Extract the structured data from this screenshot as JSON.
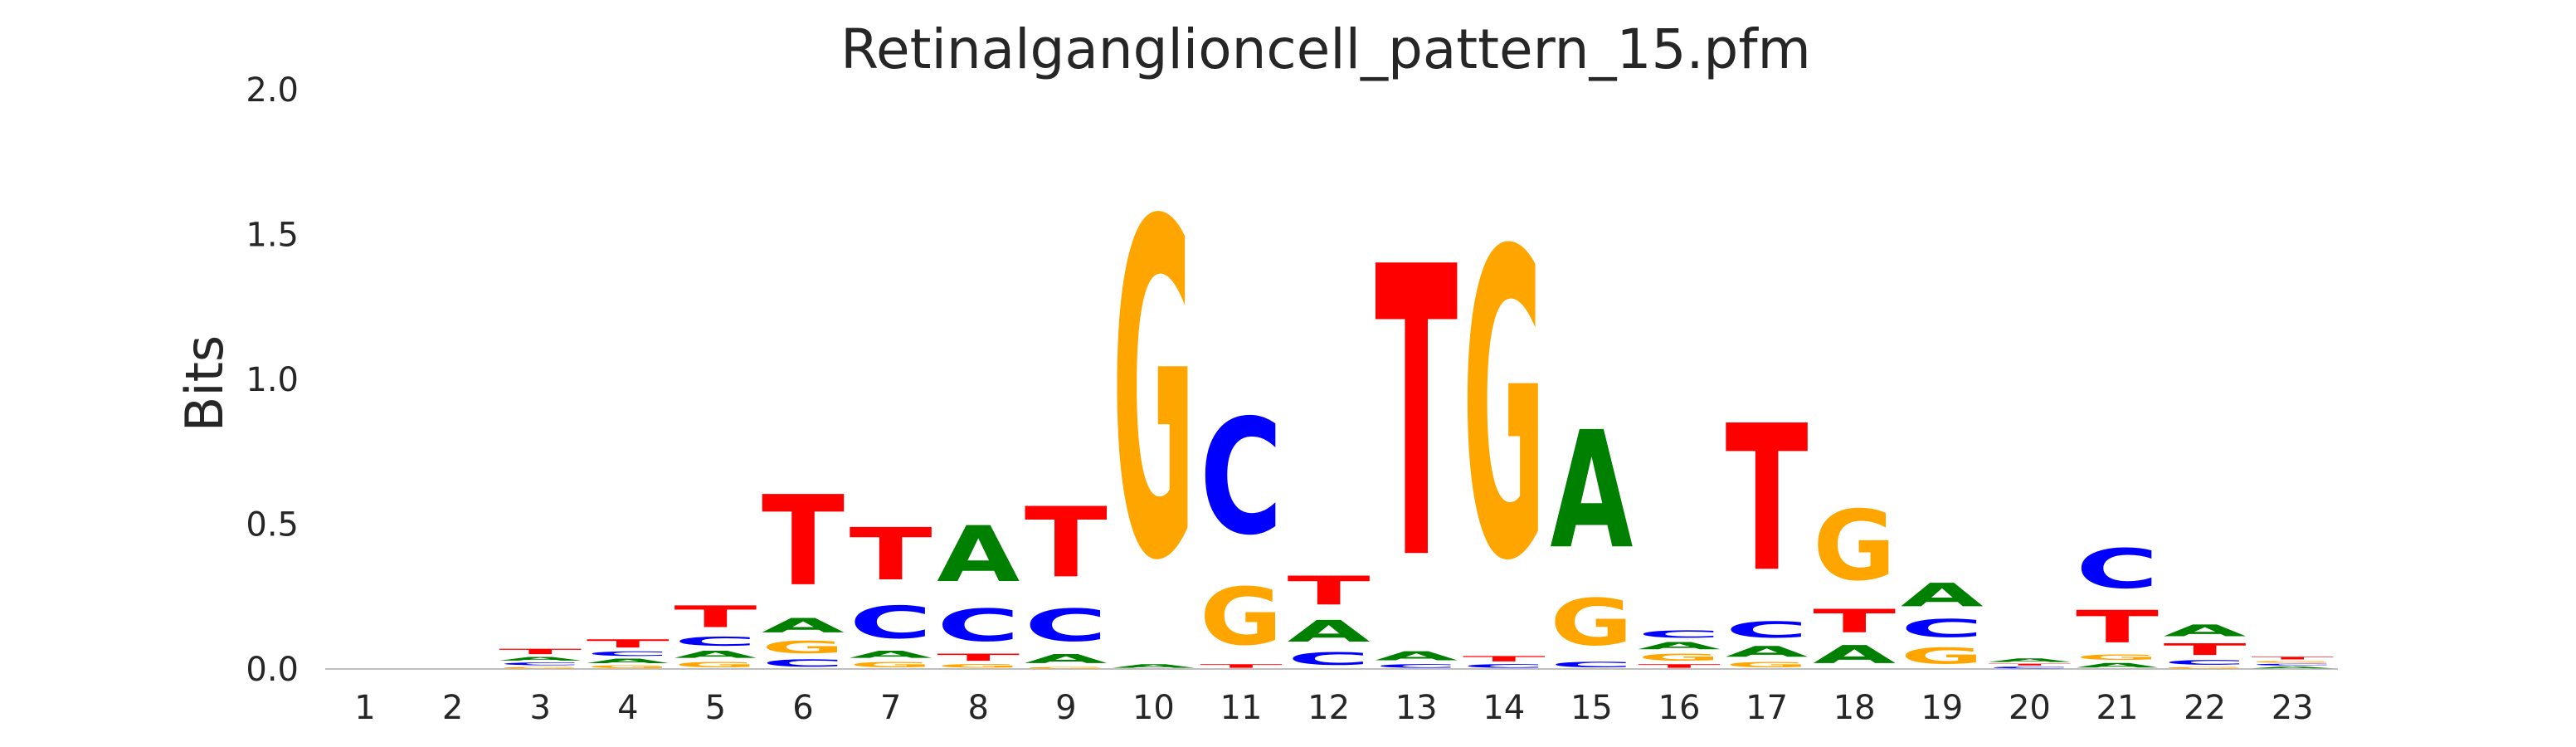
{
  "chart_data": {
    "type": "sequence-logo",
    "title": "Retinalganglioncell_pattern_15.pfm",
    "ylabel": "Bits",
    "xlabel": "",
    "ylim": [
      0,
      2.0
    ],
    "yticks": [
      "0.0",
      "0.5",
      "1.0",
      "1.5",
      "2.0"
    ],
    "colors": {
      "A": "#008000",
      "C": "#0000ff",
      "G": "#ffa500",
      "T": "#ff0000"
    },
    "positions": [
      {
        "label": "1",
        "stack": []
      },
      {
        "label": "2",
        "stack": []
      },
      {
        "label": "3",
        "stack": [
          {
            "b": "G",
            "h": 0.01
          },
          {
            "b": "C",
            "h": 0.015
          },
          {
            "b": "A",
            "h": 0.02
          },
          {
            "b": "T",
            "h": 0.03
          }
        ]
      },
      {
        "label": "4",
        "stack": [
          {
            "b": "G",
            "h": 0.015
          },
          {
            "b": "A",
            "h": 0.025
          },
          {
            "b": "C",
            "h": 0.025
          },
          {
            "b": "T",
            "h": 0.045
          }
        ]
      },
      {
        "label": "5",
        "stack": [
          {
            "b": "G",
            "h": 0.03
          },
          {
            "b": "A",
            "h": 0.04
          },
          {
            "b": "C",
            "h": 0.05
          },
          {
            "b": "T",
            "h": 0.12
          }
        ]
      },
      {
        "label": "6",
        "stack": [
          {
            "b": "C",
            "h": 0.04
          },
          {
            "b": "G",
            "h": 0.07
          },
          {
            "b": "A",
            "h": 0.08
          },
          {
            "b": "T",
            "h": 0.5
          }
        ]
      },
      {
        "label": "7",
        "stack": [
          {
            "b": "G",
            "h": 0.03
          },
          {
            "b": "A",
            "h": 0.04
          },
          {
            "b": "C",
            "h": 0.18
          },
          {
            "b": "T",
            "h": 0.29
          }
        ]
      },
      {
        "label": "8",
        "stack": [
          {
            "b": "G",
            "h": 0.02
          },
          {
            "b": "T",
            "h": 0.04
          },
          {
            "b": "C",
            "h": 0.18
          },
          {
            "b": "A",
            "h": 0.31
          }
        ]
      },
      {
        "label": "9",
        "stack": [
          {
            "b": "G",
            "h": 0.01
          },
          {
            "b": "A",
            "h": 0.05
          },
          {
            "b": "C",
            "h": 0.18
          },
          {
            "b": "T",
            "h": 0.39
          }
        ]
      },
      {
        "label": "10",
        "stack": [
          {
            "b": "A",
            "h": 0.02
          },
          {
            "b": "G",
            "h": 1.86
          }
        ]
      },
      {
        "label": "11",
        "stack": [
          {
            "b": "T",
            "h": 0.02
          },
          {
            "b": "G",
            "h": 0.32
          },
          {
            "b": "C",
            "h": 0.64
          }
        ]
      },
      {
        "label": "12",
        "stack": [
          {
            "b": "C",
            "h": 0.07
          },
          {
            "b": "A",
            "h": 0.12
          },
          {
            "b": "T",
            "h": 0.16
          }
        ]
      },
      {
        "label": "13",
        "stack": [
          {
            "b": "C",
            "h": 0.02
          },
          {
            "b": "A",
            "h": 0.05
          },
          {
            "b": "T",
            "h": 1.61
          }
        ]
      },
      {
        "label": "14",
        "stack": [
          {
            "b": "C",
            "h": 0.02
          },
          {
            "b": "T",
            "h": 0.03
          },
          {
            "b": "G",
            "h": 1.7
          }
        ]
      },
      {
        "label": "15",
        "stack": [
          {
            "b": "C",
            "h": 0.03
          },
          {
            "b": "G",
            "h": 0.26
          },
          {
            "b": "A",
            "h": 0.65
          }
        ]
      },
      {
        "label": "16",
        "stack": [
          {
            "b": "T",
            "h": 0.02
          },
          {
            "b": "G",
            "h": 0.04
          },
          {
            "b": "A",
            "h": 0.04
          },
          {
            "b": "C",
            "h": 0.04
          }
        ]
      },
      {
        "label": "17",
        "stack": [
          {
            "b": "G",
            "h": 0.03
          },
          {
            "b": "A",
            "h": 0.06
          },
          {
            "b": "C",
            "h": 0.09
          },
          {
            "b": "T",
            "h": 0.81
          }
        ]
      },
      {
        "label": "18",
        "stack": [
          {
            "b": "A",
            "h": 0.1
          },
          {
            "b": "T",
            "h": 0.13
          },
          {
            "b": "G",
            "h": 0.39
          }
        ]
      },
      {
        "label": "19",
        "stack": [
          {
            "b": "G",
            "h": 0.09
          },
          {
            "b": "C",
            "h": 0.1
          },
          {
            "b": "A",
            "h": 0.13
          }
        ]
      },
      {
        "label": "20",
        "stack": [
          {
            "b": "C",
            "h": 0.01
          },
          {
            "b": "T",
            "h": 0.01
          },
          {
            "b": "A",
            "h": 0.02
          }
        ]
      },
      {
        "label": "21",
        "stack": [
          {
            "b": "A",
            "h": 0.025
          },
          {
            "b": "G",
            "h": 0.03
          },
          {
            "b": "T",
            "h": 0.18
          },
          {
            "b": "C",
            "h": 0.22
          }
        ]
      },
      {
        "label": "22",
        "stack": [
          {
            "b": "G",
            "h": 0.01
          },
          {
            "b": "C",
            "h": 0.025
          },
          {
            "b": "T",
            "h": 0.065
          },
          {
            "b": "A",
            "h": 0.065
          }
        ]
      },
      {
        "label": "23",
        "stack": [
          {
            "b": "A",
            "h": 0.01
          },
          {
            "b": "C",
            "h": 0.01
          },
          {
            "b": "G",
            "h": 0.01
          },
          {
            "b": "T",
            "h": 0.015
          }
        ]
      }
    ]
  }
}
